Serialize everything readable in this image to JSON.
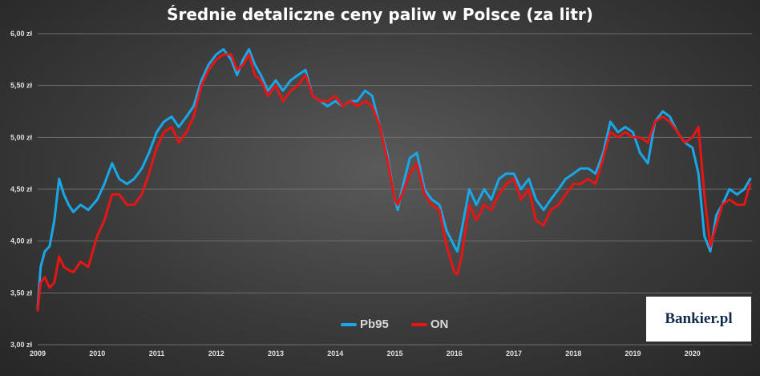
{
  "chart_data": {
    "type": "line",
    "title": "Średnie detaliczne ceny paliw w Polsce (za litr)",
    "xlabel": "",
    "ylabel": "",
    "xlim": [
      2009,
      2021
    ],
    "ylim": [
      3.0,
      6.0
    ],
    "y_ticks": [
      3.0,
      3.5,
      4.0,
      4.5,
      5.0,
      5.5,
      6.0
    ],
    "y_tick_labels": [
      "3,00 zł",
      "3,50 zł",
      "4,00 zł",
      "4,50 zł",
      "5,00 zł",
      "5,50 zł",
      "6,00 zł"
    ],
    "x_ticks": [
      2009,
      2010,
      2011,
      2012,
      2013,
      2014,
      2015,
      2016,
      2017,
      2018,
      2019,
      2020
    ],
    "x_tick_labels": [
      "2009",
      "2010",
      "2011",
      "2012",
      "2013",
      "2014",
      "2015",
      "2016",
      "2017",
      "2018",
      "2019",
      "2020"
    ],
    "grid": "horizontal",
    "legend_position": "bottom-center",
    "series": [
      {
        "name": "Pb95",
        "color": "#1aa7e8",
        "x": [
          2009.0,
          2009.05,
          2009.12,
          2009.2,
          2009.28,
          2009.36,
          2009.44,
          2009.52,
          2009.6,
          2009.72,
          2009.85,
          2010.0,
          2010.12,
          2010.25,
          2010.37,
          2010.5,
          2010.62,
          2010.75,
          2010.87,
          2011.0,
          2011.12,
          2011.25,
          2011.37,
          2011.5,
          2011.62,
          2011.75,
          2011.87,
          2012.0,
          2012.12,
          2012.25,
          2012.35,
          2012.45,
          2012.55,
          2012.65,
          2012.75,
          2012.87,
          2013.0,
          2013.12,
          2013.25,
          2013.37,
          2013.5,
          2013.62,
          2013.75,
          2013.87,
          2014.0,
          2014.12,
          2014.25,
          2014.37,
          2014.5,
          2014.62,
          2014.75,
          2014.87,
          2015.0,
          2015.05,
          2015.12,
          2015.25,
          2015.37,
          2015.5,
          2015.62,
          2015.75,
          2015.87,
          2016.0,
          2016.05,
          2016.12,
          2016.25,
          2016.37,
          2016.5,
          2016.62,
          2016.75,
          2016.87,
          2017.0,
          2017.12,
          2017.25,
          2017.37,
          2017.5,
          2017.62,
          2017.75,
          2017.87,
          2018.0,
          2018.12,
          2018.25,
          2018.37,
          2018.5,
          2018.62,
          2018.75,
          2018.87,
          2019.0,
          2019.12,
          2019.25,
          2019.37,
          2019.5,
          2019.62,
          2019.75,
          2019.87,
          2020.0,
          2020.1,
          2020.2,
          2020.3,
          2020.4,
          2020.5,
          2020.62,
          2020.75,
          2020.87,
          2020.97
        ],
        "values": [
          3.35,
          3.75,
          3.9,
          3.95,
          4.2,
          4.6,
          4.45,
          4.35,
          4.28,
          4.35,
          4.3,
          4.4,
          4.55,
          4.75,
          4.6,
          4.55,
          4.6,
          4.7,
          4.85,
          5.05,
          5.15,
          5.2,
          5.1,
          5.2,
          5.3,
          5.55,
          5.7,
          5.8,
          5.85,
          5.75,
          5.6,
          5.75,
          5.85,
          5.7,
          5.6,
          5.45,
          5.55,
          5.45,
          5.55,
          5.6,
          5.65,
          5.4,
          5.35,
          5.3,
          5.35,
          5.3,
          5.35,
          5.35,
          5.45,
          5.4,
          5.1,
          4.85,
          4.4,
          4.3,
          4.5,
          4.8,
          4.85,
          4.5,
          4.4,
          4.35,
          4.1,
          3.95,
          3.9,
          4.1,
          4.5,
          4.35,
          4.5,
          4.4,
          4.6,
          4.65,
          4.65,
          4.5,
          4.6,
          4.4,
          4.3,
          4.4,
          4.5,
          4.6,
          4.65,
          4.7,
          4.7,
          4.65,
          4.85,
          5.15,
          5.05,
          5.1,
          5.05,
          4.85,
          4.75,
          5.15,
          5.25,
          5.2,
          5.05,
          4.95,
          4.9,
          4.65,
          4.05,
          3.9,
          4.25,
          4.35,
          4.5,
          4.45,
          4.5,
          4.6
        ]
      },
      {
        "name": "ON",
        "color": "#e81515",
        "x": [
          2009.0,
          2009.05,
          2009.12,
          2009.2,
          2009.28,
          2009.36,
          2009.44,
          2009.52,
          2009.6,
          2009.72,
          2009.85,
          2010.0,
          2010.12,
          2010.25,
          2010.37,
          2010.5,
          2010.62,
          2010.75,
          2010.87,
          2011.0,
          2011.12,
          2011.25,
          2011.37,
          2011.5,
          2011.62,
          2011.75,
          2011.87,
          2012.0,
          2012.12,
          2012.25,
          2012.35,
          2012.45,
          2012.55,
          2012.65,
          2012.75,
          2012.87,
          2013.0,
          2013.12,
          2013.25,
          2013.37,
          2013.5,
          2013.62,
          2013.75,
          2013.87,
          2014.0,
          2014.12,
          2014.25,
          2014.37,
          2014.5,
          2014.62,
          2014.75,
          2014.87,
          2015.0,
          2015.05,
          2015.12,
          2015.25,
          2015.37,
          2015.5,
          2015.62,
          2015.75,
          2015.87,
          2016.0,
          2016.05,
          2016.12,
          2016.25,
          2016.37,
          2016.5,
          2016.62,
          2016.75,
          2016.87,
          2017.0,
          2017.12,
          2017.25,
          2017.37,
          2017.5,
          2017.62,
          2017.75,
          2017.87,
          2018.0,
          2018.12,
          2018.25,
          2018.37,
          2018.5,
          2018.62,
          2018.75,
          2018.87,
          2019.0,
          2019.12,
          2019.25,
          2019.37,
          2019.5,
          2019.62,
          2019.75,
          2019.87,
          2020.0,
          2020.1,
          2020.2,
          2020.3,
          2020.4,
          2020.5,
          2020.62,
          2020.75,
          2020.87,
          2020.97
        ],
        "values": [
          3.33,
          3.6,
          3.65,
          3.55,
          3.6,
          3.85,
          3.75,
          3.72,
          3.7,
          3.8,
          3.75,
          4.05,
          4.2,
          4.45,
          4.45,
          4.35,
          4.35,
          4.45,
          4.65,
          4.9,
          5.05,
          5.1,
          4.95,
          5.05,
          5.2,
          5.5,
          5.65,
          5.75,
          5.8,
          5.8,
          5.65,
          5.7,
          5.8,
          5.6,
          5.55,
          5.4,
          5.5,
          5.35,
          5.45,
          5.5,
          5.6,
          5.4,
          5.35,
          5.35,
          5.4,
          5.3,
          5.35,
          5.3,
          5.35,
          5.3,
          5.1,
          4.8,
          4.4,
          4.35,
          4.45,
          4.65,
          4.75,
          4.45,
          4.35,
          4.3,
          3.95,
          3.7,
          3.68,
          3.85,
          4.35,
          4.2,
          4.35,
          4.3,
          4.45,
          4.55,
          4.6,
          4.4,
          4.5,
          4.2,
          4.15,
          4.3,
          4.35,
          4.45,
          4.55,
          4.55,
          4.6,
          4.55,
          4.8,
          5.05,
          5.0,
          5.05,
          5.0,
          5.0,
          4.95,
          5.15,
          5.2,
          5.15,
          5.05,
          4.95,
          5.0,
          5.1,
          4.45,
          3.95,
          4.15,
          4.35,
          4.4,
          4.35,
          4.35,
          4.55
        ]
      }
    ]
  },
  "legend": {
    "items": [
      {
        "label": "Pb95",
        "color": "#1aa7e8"
      },
      {
        "label": "ON",
        "color": "#e81515"
      }
    ]
  },
  "logo": {
    "text": "Bankier.pl"
  }
}
